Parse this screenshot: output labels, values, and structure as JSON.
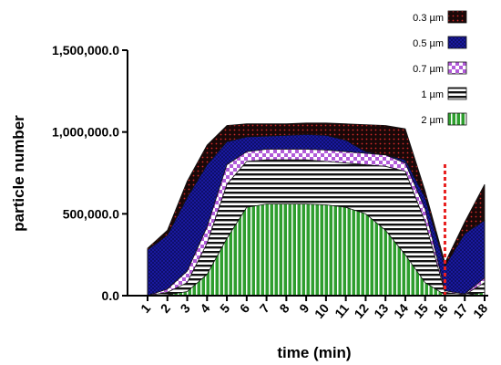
{
  "chart_data": {
    "type": "area",
    "stacked": false,
    "title": "",
    "xlabel": "time (min)",
    "ylabel": "particle number",
    "x": [
      1,
      2,
      3,
      4,
      5,
      6,
      7,
      8,
      9,
      10,
      11,
      12,
      13,
      14,
      15,
      16,
      17,
      18
    ],
    "x_tick_labels": [
      "1",
      "2",
      "3",
      "4",
      "5",
      "6",
      "7",
      "8",
      "9",
      "10",
      "11",
      "12",
      "13",
      "14",
      "15",
      "16",
      "17",
      "18"
    ],
    "ylim": [
      0,
      1500000
    ],
    "y_ticks": [
      0,
      500000,
      1000000,
      1500000
    ],
    "y_tick_labels": [
      "0.0",
      "500,000.0",
      "1,000,000.0",
      "1,500,000.0"
    ],
    "grid": false,
    "legend_position": "top-right",
    "series": [
      {
        "name": "0.3 µm",
        "color": "#8b1a1a",
        "pattern": "red-dots-on-black",
        "values": [
          290000,
          400000,
          700000,
          920000,
          1040000,
          1050000,
          1050000,
          1050000,
          1055000,
          1055000,
          1050000,
          1045000,
          1040000,
          1020000,
          640000,
          200000,
          450000,
          680000
        ]
      },
      {
        "name": "0.5 µm",
        "color": "#1a1a9c",
        "pattern": "blue-crosshatch",
        "values": [
          280000,
          370000,
          600000,
          800000,
          940000,
          970000,
          975000,
          980000,
          985000,
          980000,
          950000,
          880000,
          860000,
          830000,
          600000,
          180000,
          380000,
          460000
        ]
      },
      {
        "name": "0.7 µm",
        "color": "#b25bd9",
        "pattern": "purple-checker",
        "values": [
          0,
          40000,
          150000,
          420000,
          800000,
          880000,
          895000,
          895000,
          895000,
          890000,
          880000,
          870000,
          860000,
          810000,
          530000,
          30000,
          10000,
          110000
        ]
      },
      {
        "name": "1 µm",
        "color": "#111111",
        "pattern": "horizontal-stripes",
        "values": [
          0,
          20000,
          80000,
          320000,
          680000,
          820000,
          830000,
          830000,
          830000,
          820000,
          810000,
          800000,
          790000,
          760000,
          450000,
          20000,
          5000,
          80000
        ]
      },
      {
        "name": "2 µm",
        "color": "#2e9e2e",
        "pattern": "vertical-green-stripes",
        "values": [
          0,
          5000,
          25000,
          130000,
          350000,
          540000,
          560000,
          560000,
          560000,
          555000,
          540000,
          500000,
          400000,
          250000,
          80000,
          5000,
          0,
          20000
        ]
      }
    ],
    "annotations": [
      {
        "type": "vertical-dashed-line",
        "x": 16,
        "color": "#e82020"
      }
    ]
  },
  "colors": {
    "axis": "#000000",
    "annotation_line": "#e82020"
  }
}
